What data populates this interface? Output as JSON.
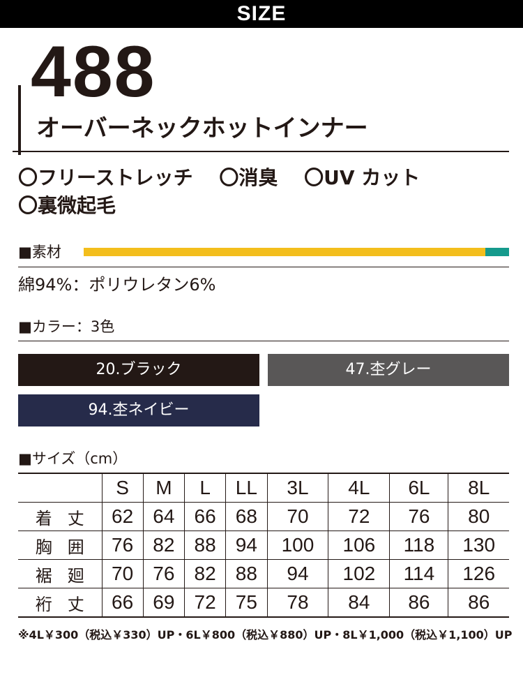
{
  "header": {
    "size_label": "SIZE"
  },
  "product": {
    "model": "488",
    "name": "オーバーネックホットインナー"
  },
  "features": [
    [
      "〇フリーストレッチ",
      "〇消臭",
      "〇UV カット"
    ],
    [
      "〇裏微起毛"
    ]
  ],
  "material": {
    "heading": "■素材",
    "text": "綿94%：ポリウレタン6%",
    "colors": {
      "cotton": "#f3be1c",
      "polyurethane": "#159a8c"
    }
  },
  "colors_section": {
    "heading": "■カラー：3色",
    "items": [
      {
        "label": "20.ブラック",
        "hex": "#231815"
      },
      {
        "label": "47.杢グレー",
        "hex": "#595757"
      },
      {
        "label": "94.杢ネイビー",
        "hex": "#262b4a"
      }
    ]
  },
  "size_section": {
    "heading": "■サイズ（cm）",
    "columns": [
      "S",
      "M",
      "L",
      "LL",
      "3L",
      "4L",
      "6L",
      "8L"
    ],
    "rows": [
      {
        "label": "着丈",
        "values": [
          "62",
          "64",
          "66",
          "68",
          "70",
          "72",
          "76",
          "80"
        ]
      },
      {
        "label": "胸囲",
        "values": [
          "76",
          "82",
          "88",
          "94",
          "100",
          "106",
          "118",
          "130"
        ]
      },
      {
        "label": "裾廻",
        "values": [
          "70",
          "76",
          "82",
          "88",
          "94",
          "102",
          "114",
          "126"
        ]
      },
      {
        "label": "裄丈",
        "values": [
          "66",
          "69",
          "72",
          "75",
          "78",
          "84",
          "86",
          "86"
        ]
      }
    ]
  },
  "note": "※4L￥300（税込￥330）UP・6L￥800（税込￥880）UP・8L￥1,000（税込￥1,100）UP"
}
